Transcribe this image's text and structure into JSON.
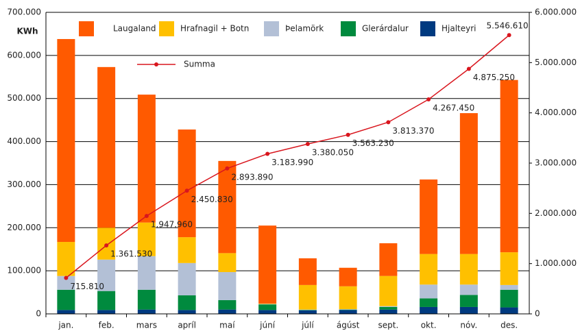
{
  "chart_data": {
    "type": "stacked-bar-line",
    "y_label": "KWh",
    "categories": [
      "jan.",
      "feb.",
      "mars",
      "apríl",
      "maí",
      "júní",
      "júlí",
      "ágúst",
      "sept.",
      "okt.",
      "nóv.",
      "des."
    ],
    "series": [
      {
        "name": "Hjalteyri",
        "color": "#003a80",
        "values": [
          9000,
          9000,
          10000,
          9000,
          10000,
          9000,
          8000,
          9000,
          10000,
          16000,
          16000,
          15000
        ]
      },
      {
        "name": "Glerárdalur",
        "color": "#008a3e",
        "values": [
          47000,
          44000,
          46000,
          34000,
          22000,
          13000,
          1000,
          1000,
          6000,
          20000,
          28000,
          41000
        ]
      },
      {
        "name": "Þelamörk",
        "color": "#b3c0d6",
        "values": [
          32000,
          73000,
          78000,
          75000,
          65000,
          1000,
          1000,
          1000,
          2000,
          32000,
          24000,
          11000
        ]
      },
      {
        "name": "Hrafnagil + Botn",
        "color": "#ffc000",
        "values": [
          79000,
          74000,
          78000,
          60000,
          44000,
          1000,
          57000,
          53000,
          70000,
          71000,
          71000,
          76000
        ]
      },
      {
        "name": "Laugaland",
        "color": "#ff5a00",
        "values": [
          471000,
          373000,
          297000,
          250000,
          214000,
          181000,
          62000,
          43000,
          76000,
          173000,
          327000,
          400000
        ]
      },
      {
        "name": "Summa",
        "color": "#d9161e",
        "axis": "y2",
        "values": [
          715810,
          1361530,
          1947960,
          2450830,
          2893890,
          3183990,
          3380050,
          3563230,
          3813370,
          4267450,
          4875250,
          5546610
        ],
        "value_labels": [
          "715.810",
          "1.361.530",
          "1.947.960",
          "2.450.830",
          "2.893.890",
          "3.183.990",
          "3.380.050",
          "3.563.230",
          "3.813.370",
          "4.267.450",
          "4.875.250",
          "5.546.610"
        ]
      }
    ],
    "ylim": [
      0,
      700000
    ],
    "yticks": [
      0,
      {
        "value": 100000,
        "label": "100.000"
      },
      {
        "value": 200000,
        "label": "200.000"
      },
      {
        "value": 300000,
        "label": "300.000"
      },
      {
        "value": 400000,
        "label": "400.000"
      },
      {
        "value": 500000,
        "label": "500.000"
      },
      {
        "value": 600000,
        "label": "600.000"
      },
      {
        "value": 700000,
        "label": "700.000"
      }
    ],
    "y2lim": [
      0,
      6000000
    ],
    "y2ticks": [
      0,
      {
        "value": 1000000,
        "label": "1.000.000"
      },
      {
        "value": 2000000,
        "label": "2.000.000"
      },
      {
        "value": 3000000,
        "label": "3.000.000"
      },
      {
        "value": 4000000,
        "label": "4.000.000"
      },
      {
        "value": 5000000,
        "label": "5.000.000"
      },
      {
        "value": 6000000,
        "label": "6.000.000"
      }
    ],
    "grid": true
  }
}
